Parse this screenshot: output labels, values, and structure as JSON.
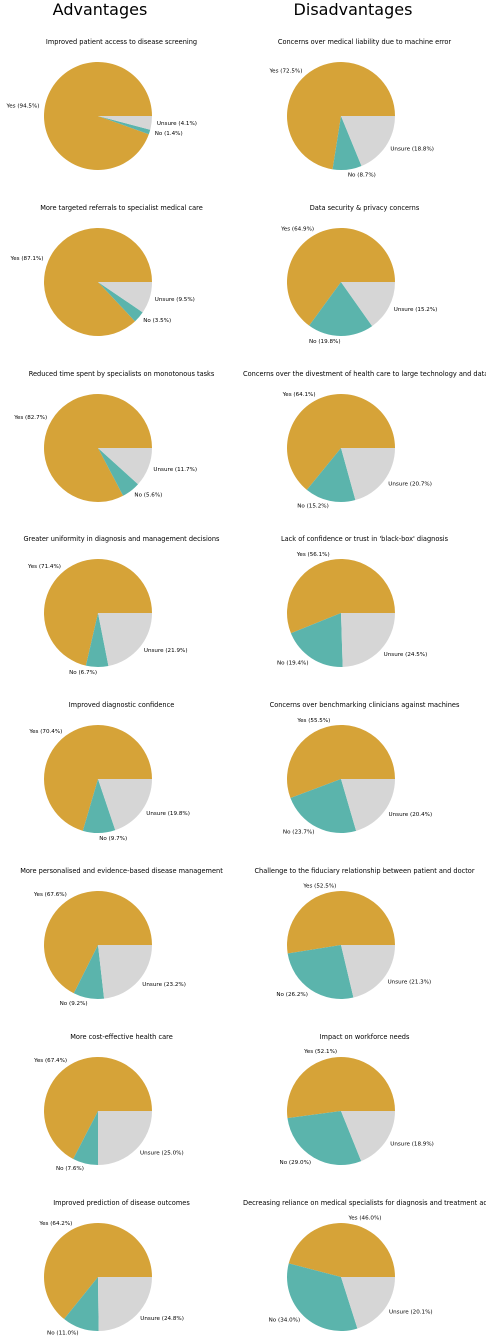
{
  "headers": {
    "left": "Advantages",
    "right": "Disadvantages"
  },
  "colors": {
    "yes": "#d6a338",
    "no": "#5bb4ac",
    "unsure": "#d6d6d6"
  },
  "chart_data": [
    {
      "type": "pie",
      "column": "Advantages",
      "title": "Improved patient access to disease screening",
      "categories": [
        "Yes",
        "No",
        "Unsure"
      ],
      "values": [
        94.5,
        1.4,
        4.1
      ],
      "labels": [
        "Yes (94.5%)",
        "No (1.4%)",
        "Unsure (4.1%)"
      ]
    },
    {
      "type": "pie",
      "column": "Disadvantages",
      "title": "Concerns over medical liability due to machine error",
      "categories": [
        "Yes",
        "No",
        "Unsure"
      ],
      "values": [
        72.5,
        8.7,
        18.8
      ],
      "labels": [
        "Yes (72.5%)",
        "No (8.7%)",
        "Unsure (18.8%)"
      ]
    },
    {
      "type": "pie",
      "column": "Advantages",
      "title": "More targeted referrals to specialist medical care",
      "categories": [
        "Yes",
        "No",
        "Unsure"
      ],
      "values": [
        87.1,
        3.5,
        9.5
      ],
      "labels": [
        "Yes (87.1%)",
        "No (3.5%)",
        "Unsure (9.5%)"
      ]
    },
    {
      "type": "pie",
      "column": "Disadvantages",
      "title": "Data security & privacy concerns",
      "categories": [
        "Yes",
        "No",
        "Unsure"
      ],
      "values": [
        64.9,
        19.8,
        15.2
      ],
      "labels": [
        "Yes (64.9%)",
        "No (19.8%)",
        "Unsure (15.2%)"
      ]
    },
    {
      "type": "pie",
      "column": "Advantages",
      "title": "Reduced time spent by specialists on monotonous tasks",
      "categories": [
        "Yes",
        "No",
        "Unsure"
      ],
      "values": [
        82.7,
        5.6,
        11.7
      ],
      "labels": [
        "Yes (82.7%)",
        "No (5.6%)",
        "Unsure (11.7%)"
      ]
    },
    {
      "type": "pie",
      "column": "Disadvantages",
      "title": "Concerns over the divestment of health care to large technology and data companies",
      "categories": [
        "Yes",
        "No",
        "Unsure"
      ],
      "values": [
        64.1,
        15.2,
        20.7
      ],
      "labels": [
        "Yes (64.1%)",
        "No (15.2%)",
        "Unsure (20.7%)"
      ]
    },
    {
      "type": "pie",
      "column": "Advantages",
      "title": "Greater uniformity in diagnosis and management decisions",
      "categories": [
        "Yes",
        "No",
        "Unsure"
      ],
      "values": [
        71.4,
        6.7,
        21.9
      ],
      "labels": [
        "Yes (71.4%)",
        "No (6.7%)",
        "Unsure (21.9%)"
      ]
    },
    {
      "type": "pie",
      "column": "Disadvantages",
      "title": "Lack of confidence or trust in 'black-box' diagnosis",
      "categories": [
        "Yes",
        "No",
        "Unsure"
      ],
      "values": [
        56.1,
        19.4,
        24.5
      ],
      "labels": [
        "Yes (56.1%)",
        "No (19.4%)",
        "Unsure (24.5%)"
      ]
    },
    {
      "type": "pie",
      "column": "Advantages",
      "title": "Improved diagnostic confidence",
      "categories": [
        "Yes",
        "No",
        "Unsure"
      ],
      "values": [
        70.4,
        9.7,
        19.8
      ],
      "labels": [
        "Yes (70.4%)",
        "No (9.7%)",
        "Unsure (19.8%)"
      ]
    },
    {
      "type": "pie",
      "column": "Disadvantages",
      "title": "Concerns over benchmarking clinicians against machines",
      "categories": [
        "Yes",
        "No",
        "Unsure"
      ],
      "values": [
        55.5,
        23.7,
        20.4
      ],
      "labels": [
        "Yes (55.5%)",
        "No (23.7%)",
        "Unsure (20.4%)"
      ]
    },
    {
      "type": "pie",
      "column": "Advantages",
      "title": "More personalised and evidence-based disease management",
      "categories": [
        "Yes",
        "No",
        "Unsure"
      ],
      "values": [
        67.6,
        9.2,
        23.2
      ],
      "labels": [
        "Yes (67.6%)",
        "No (9.2%)",
        "Unsure (23.2%)"
      ]
    },
    {
      "type": "pie",
      "column": "Disadvantages",
      "title": "Challenge to the fiduciary relationship between patient and doctor",
      "categories": [
        "Yes",
        "No",
        "Unsure"
      ],
      "values": [
        52.5,
        26.2,
        21.3
      ],
      "labels": [
        "Yes (52.5%)",
        "No (26.2%)",
        "Unsure (21.3%)"
      ]
    },
    {
      "type": "pie",
      "column": "Advantages",
      "title": "More cost-effective health care",
      "categories": [
        "Yes",
        "No",
        "Unsure"
      ],
      "values": [
        67.4,
        7.6,
        25.0
      ],
      "labels": [
        "Yes (67.4%)",
        "No (7.6%)",
        "Unsure (25.0%)"
      ]
    },
    {
      "type": "pie",
      "column": "Disadvantages",
      "title": "Impact on workforce needs",
      "categories": [
        "Yes",
        "No",
        "Unsure"
      ],
      "values": [
        52.1,
        29.0,
        18.9
      ],
      "labels": [
        "Yes (52.1%)",
        "No (29.0%)",
        "Unsure (18.9%)"
      ]
    },
    {
      "type": "pie",
      "column": "Advantages",
      "title": "Improved prediction of disease outcomes",
      "categories": [
        "Yes",
        "No",
        "Unsure"
      ],
      "values": [
        64.2,
        11.0,
        24.8
      ],
      "labels": [
        "Yes (64.2%)",
        "No (11.0%)",
        "Unsure (24.8%)"
      ]
    },
    {
      "type": "pie",
      "column": "Disadvantages",
      "title": "Decreasing reliance on medical specialists for diagnosis and treatment advice",
      "categories": [
        "Yes",
        "No",
        "Unsure"
      ],
      "values": [
        46.0,
        34.0,
        20.1
      ],
      "labels": [
        "Yes (46.0%)",
        "No (34.0%)",
        "Unsure (20.1%)"
      ]
    }
  ]
}
